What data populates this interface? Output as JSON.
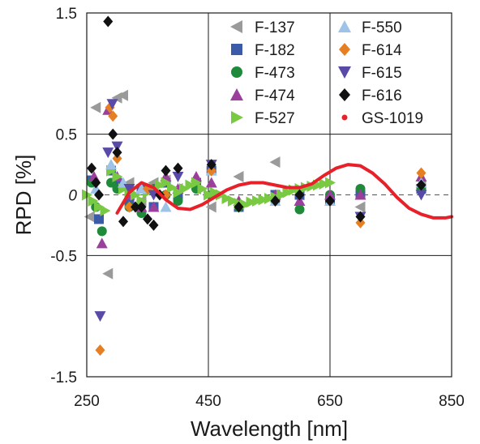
{
  "chart_data": {
    "type": "scatter",
    "xlabel": "Wavelength [nm]",
    "ylabel": "RPD [%]",
    "xlim": [
      250,
      850
    ],
    "ylim": [
      -1.5,
      1.5
    ],
    "xticks": [
      250,
      450,
      650,
      850
    ],
    "yticks": [
      {
        "value": 1.5,
        "label": "1.5"
      },
      {
        "value": 0.5,
        "label": "0.5"
      },
      {
        "value": 0,
        "label": "0"
      },
      {
        "value": -0.5,
        "label": "-0.5"
      },
      {
        "value": -1.5,
        "label": "-1.5"
      }
    ],
    "grid": true,
    "zero_line": "dashed",
    "legend_position": "top-right",
    "series": [
      {
        "name": "F-137",
        "marker": "triangle-left",
        "color": "#9a9a9a",
        "x": [
          255,
          265,
          285,
          300,
          310,
          320,
          340,
          360,
          380,
          400,
          430,
          455,
          500,
          560,
          600,
          700,
          800
        ],
        "y": [
          -0.18,
          0.72,
          -0.65,
          0.8,
          0.82,
          0.1,
          -0.05,
          0.1,
          0.12,
          0.05,
          0.05,
          -0.1,
          0.15,
          0.27,
          0.0,
          -0.1,
          0.08
        ]
      },
      {
        "name": "F-182",
        "marker": "square",
        "color": "#3b5aa8",
        "x": [
          258,
          270,
          290,
          300,
          320,
          340,
          360,
          380,
          400,
          430,
          455,
          500,
          560,
          600,
          650,
          700,
          800
        ],
        "y": [
          0.12,
          -0.2,
          0.2,
          0.1,
          -0.05,
          0.05,
          -0.1,
          0.1,
          0.0,
          0.1,
          0.2,
          -0.1,
          0.0,
          0.0,
          -0.05,
          0.0,
          0.05
        ]
      },
      {
        "name": "F-473",
        "marker": "circle",
        "color": "#1e8a3a",
        "x": [
          258,
          265,
          275,
          290,
          300,
          320,
          340,
          360,
          380,
          400,
          430,
          455,
          500,
          560,
          600,
          650,
          700,
          800
        ],
        "y": [
          0.1,
          -0.1,
          -0.3,
          0.1,
          0.05,
          -0.1,
          -0.15,
          0.05,
          0.0,
          -0.05,
          0.05,
          0.0,
          -0.1,
          -0.05,
          -0.12,
          0.0,
          0.05,
          0.05
        ]
      },
      {
        "name": "F-474",
        "marker": "triangle-up",
        "color": "#9b3f9c",
        "x": [
          262,
          275,
          285,
          300,
          320,
          340,
          360,
          380,
          400,
          430,
          455,
          500,
          560,
          600,
          650,
          700,
          800
        ],
        "y": [
          0.15,
          -0.4,
          0.7,
          0.15,
          0.0,
          -0.1,
          -0.1,
          0.15,
          0.05,
          0.15,
          0.1,
          -0.05,
          0.0,
          -0.05,
          0.0,
          0.0,
          0.15
        ]
      },
      {
        "name": "F-527",
        "marker": "triangle-right",
        "color": "#7ac943",
        "x": [
          250,
          260,
          270,
          280,
          290,
          300,
          310,
          320,
          330,
          340,
          350,
          360,
          370,
          380,
          390,
          400,
          410,
          420,
          430,
          440,
          450,
          460,
          470,
          480,
          490,
          500,
          510,
          520,
          530,
          540,
          550,
          560,
          570,
          580,
          590,
          600,
          610,
          620,
          630,
          640,
          650
        ],
        "y": [
          0.0,
          -0.05,
          -0.1,
          -0.13,
          0.2,
          0.15,
          0.05,
          0.02,
          0.0,
          -0.05,
          0.02,
          0.05,
          0.08,
          0.1,
          0.06,
          0.02,
          0.05,
          0.08,
          0.1,
          0.05,
          0.0,
          0.02,
          0.0,
          -0.03,
          -0.05,
          -0.07,
          -0.08,
          -0.06,
          -0.05,
          -0.04,
          -0.03,
          -0.02,
          0.0,
          0.02,
          0.04,
          0.05,
          0.06,
          0.07,
          0.08,
          0.09,
          0.1
        ]
      },
      {
        "name": "F-550",
        "marker": "triangle-up",
        "color": "#9fc3e6",
        "x": [
          265,
          290,
          310,
          340,
          380,
          455,
          560,
          650,
          800
        ],
        "y": [
          0.05,
          0.25,
          0.1,
          0.05,
          -0.1,
          0.2,
          -0.05,
          -0.05,
          0.1
        ]
      },
      {
        "name": "F-614",
        "marker": "diamond",
        "color": "#e67e22",
        "x": [
          272,
          288,
          293,
          300,
          320,
          350,
          380,
          455,
          700,
          800
        ],
        "y": [
          -1.28,
          0.72,
          0.65,
          0.3,
          -0.1,
          0.05,
          0.0,
          0.2,
          -0.23,
          0.18
        ]
      },
      {
        "name": "F-615",
        "marker": "triangle-down",
        "color": "#5a4aa8",
        "x": [
          272,
          285,
          292,
          300,
          320,
          360,
          400,
          455,
          700,
          800
        ],
        "y": [
          -1.0,
          0.35,
          0.75,
          0.4,
          0.05,
          0.0,
          0.15,
          0.25,
          -0.18,
          0.0
        ]
      },
      {
        "name": "F-616",
        "marker": "diamond",
        "color": "#111111",
        "x": [
          258,
          265,
          270,
          285,
          293,
          300,
          310,
          330,
          340,
          350,
          360,
          370,
          380,
          400,
          455,
          500,
          560,
          600,
          650,
          700,
          800
        ],
        "y": [
          0.22,
          0.1,
          0.0,
          1.43,
          0.5,
          0.35,
          -0.22,
          -0.1,
          -0.1,
          -0.2,
          -0.25,
          0.0,
          0.2,
          0.22,
          0.25,
          -0.1,
          -0.05,
          0.0,
          -0.05,
          -0.18,
          0.08
        ]
      },
      {
        "name": "GS-1019",
        "marker": "line",
        "color": "#e8202a",
        "x": [
          300,
          320,
          340,
          360,
          380,
          400,
          420,
          440,
          460,
          480,
          500,
          520,
          540,
          560,
          580,
          600,
          620,
          640,
          660,
          680,
          700,
          720,
          740,
          760,
          780,
          800,
          820,
          840,
          850
        ],
        "y": [
          -0.15,
          0.02,
          0.1,
          0.06,
          -0.04,
          -0.11,
          -0.12,
          -0.08,
          -0.02,
          0.04,
          0.08,
          0.1,
          0.1,
          0.08,
          0.06,
          0.06,
          0.09,
          0.16,
          0.22,
          0.25,
          0.24,
          0.18,
          0.09,
          -0.02,
          -0.11,
          -0.16,
          -0.19,
          -0.19,
          -0.18
        ]
      }
    ]
  }
}
